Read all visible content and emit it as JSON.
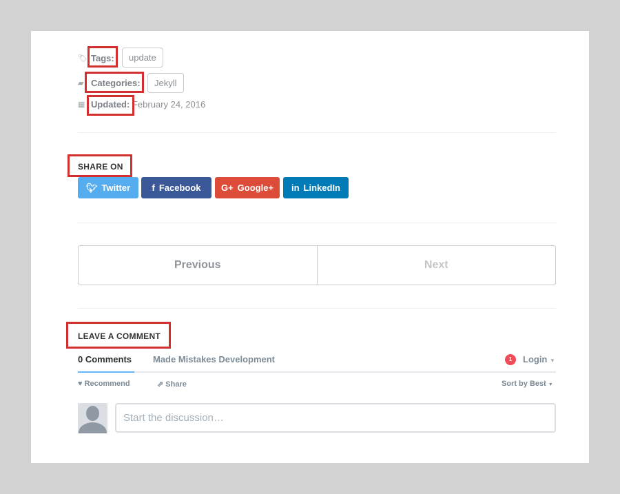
{
  "meta": {
    "tags_label": "Tags:",
    "tag": "update",
    "categories_label": "Categories:",
    "category": "Jekyll",
    "updated_label": "Updated:",
    "updated_value": "February 24, 2016"
  },
  "share": {
    "heading": "SHARE ON",
    "buttons": [
      {
        "label": "Twitter",
        "color": "#55acee"
      },
      {
        "label": "Facebook",
        "color": "#3b5998"
      },
      {
        "label": "Google+",
        "color": "#dd4b39"
      },
      {
        "label": "LinkedIn",
        "color": "#007bb5"
      }
    ]
  },
  "pager": {
    "previous": "Previous",
    "next": "Next"
  },
  "comments": {
    "heading": "LEAVE A COMMENT",
    "tab_count": "0 Comments",
    "tab_site": "Made Mistakes Development",
    "notification_count": "1",
    "login": "Login",
    "recommend": "Recommend",
    "share": "Share",
    "sort": "Sort by Best",
    "placeholder": "Start the discussion…"
  },
  "colors": {
    "highlight": "#d32f2f",
    "accent": "#2e9fff"
  }
}
